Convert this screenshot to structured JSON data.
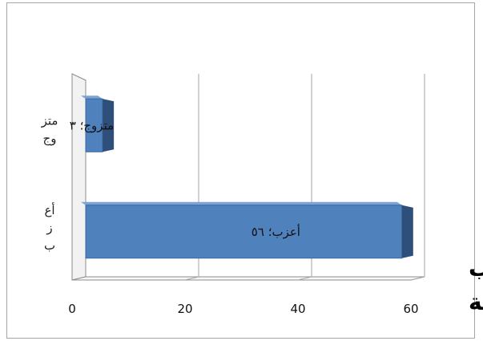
{
  "chart_data": {
    "type": "bar",
    "orientation": "horizontal",
    "style": "3d",
    "title": "توزيع أفراد العينة حسسب الحالة الاجتماعية",
    "title_lines": [
      "توزيع أفراد العينة حسسب",
      "الحالة الاجتماعية"
    ],
    "categories": [
      "أعزب",
      "متزوج"
    ],
    "category_label_lines": [
      [
        "أع",
        "ز",
        "ب"
      ],
      [
        "متز",
        "وج"
      ]
    ],
    "values": [
      56,
      3
    ],
    "data_labels": [
      "أعزب؛ ٥٦",
      "متزوج؛ ٣"
    ],
    "xlim": [
      0,
      60
    ],
    "xticks": [
      0,
      20,
      40,
      60
    ],
    "xtick_labels": [
      "0",
      "20",
      "40",
      "60"
    ],
    "grid": true,
    "legend": "none",
    "colors": {
      "bar": "#4f81bd",
      "bar_dark": "#2e4f7a",
      "wall": "#f2f2f2",
      "grid": "#a6a6a6",
      "axis": "#8c8c8c"
    }
  }
}
